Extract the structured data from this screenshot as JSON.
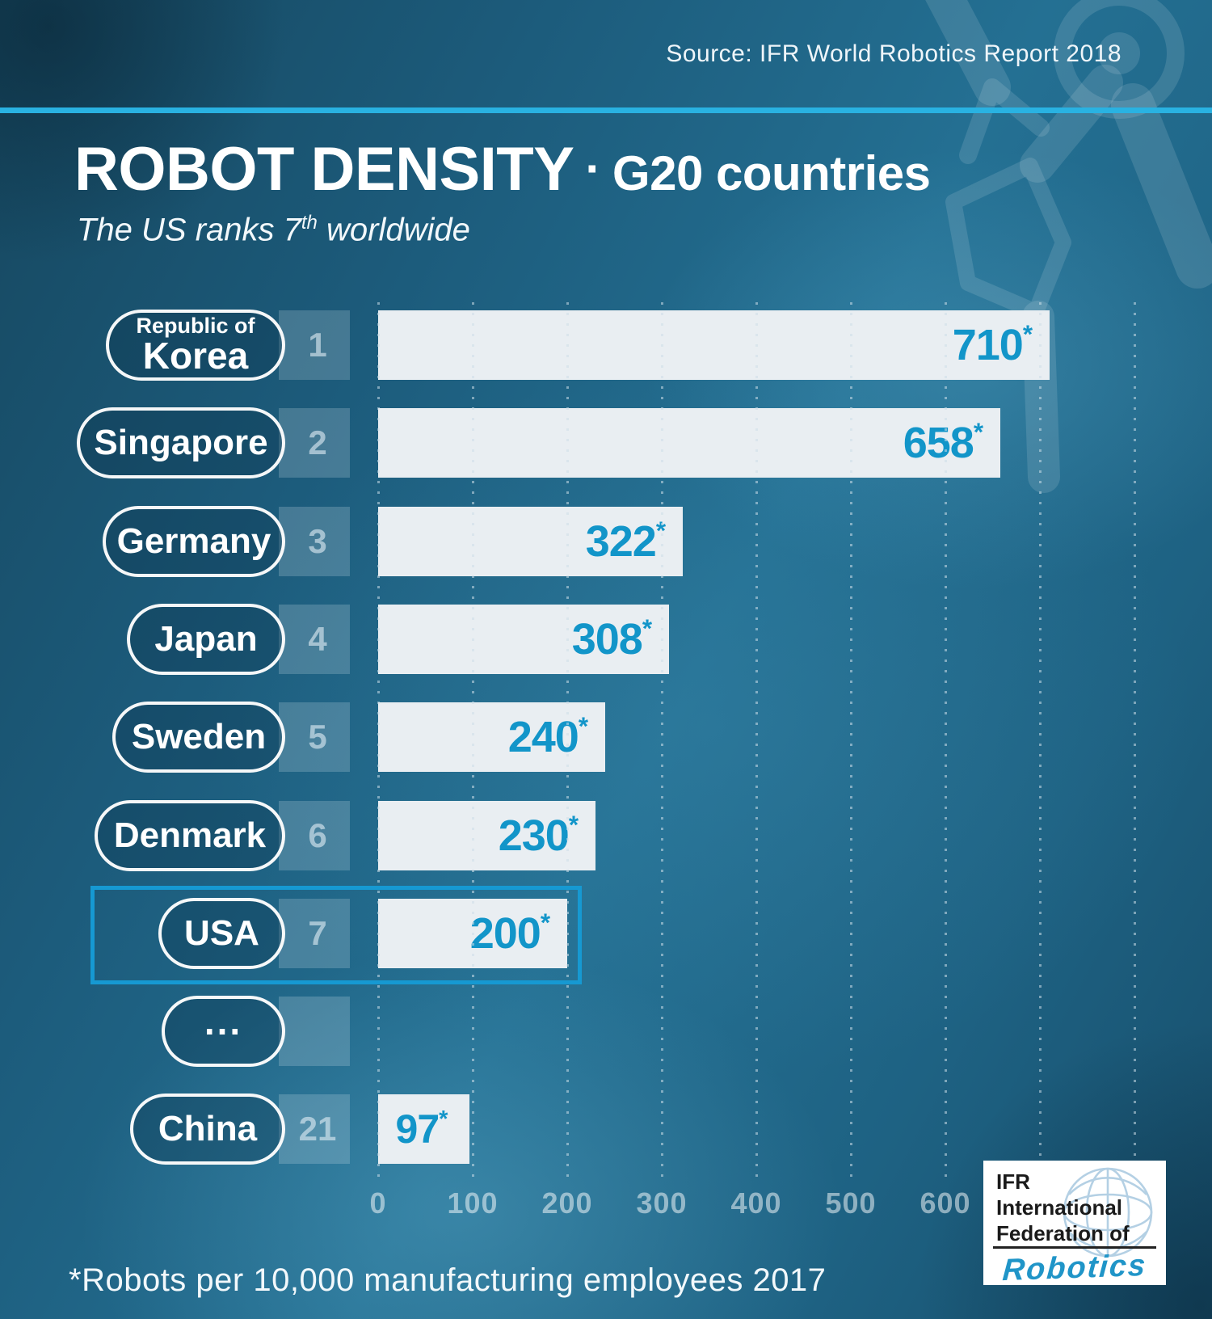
{
  "source_label": "Source: IFR World Robotics Report 2018",
  "title": {
    "main": "ROBOT DENSITY",
    "separator": "·",
    "suffix": "G20 countries"
  },
  "subtitle": {
    "prefix": "The US ranks 7",
    "sup": "th",
    "suffix": " worldwide"
  },
  "footnote": "*Robots per 10,000 manufacturing employees 2017",
  "logo": {
    "line1": "IFR",
    "line2": "International",
    "line3": "Federation of",
    "script": "Robotics"
  },
  "colors": {
    "accent": "#1295c9",
    "bar_fill": "#e9eef2",
    "divider": "#29b2e2",
    "highlight_border": "#1699d2",
    "grid_dot": "rgba(205,222,232,0.55)",
    "rank_color": "rgba(222,236,244,0.62)"
  },
  "chart_data": {
    "type": "bar",
    "title": "Robot density · G20 countries",
    "unit": "robots per 10,000 manufacturing employees (2017)",
    "xlabel": "",
    "ylabel": "",
    "xlim": [
      0,
      800
    ],
    "x_ticks": [
      0,
      100,
      200,
      300,
      400,
      500,
      600
    ],
    "grid_extra_ticks": [
      700,
      800
    ],
    "value_suffix": "*",
    "rows": [
      {
        "country": "Republic of Korea",
        "label_top": "Republic of",
        "label": "Korea",
        "rank": "1",
        "value": 710,
        "highlighted": false
      },
      {
        "country": "Singapore",
        "label": "Singapore",
        "rank": "2",
        "value": 658,
        "highlighted": false
      },
      {
        "country": "Germany",
        "label": "Germany",
        "rank": "3",
        "value": 322,
        "highlighted": false
      },
      {
        "country": "Japan",
        "label": "Japan",
        "rank": "4",
        "value": 308,
        "highlighted": false
      },
      {
        "country": "Sweden",
        "label": "Sweden",
        "rank": "5",
        "value": 240,
        "highlighted": false
      },
      {
        "country": "Denmark",
        "label": "Denmark",
        "rank": "6",
        "value": 230,
        "highlighted": false
      },
      {
        "country": "USA",
        "label": "USA",
        "rank": "7",
        "value": 200,
        "highlighted": true
      },
      {
        "country": "(skipped ranks)",
        "label": "...",
        "rank": "",
        "value": null,
        "highlighted": false
      },
      {
        "country": "China",
        "label": "China",
        "rank": "21",
        "value": 97,
        "highlighted": false
      }
    ]
  }
}
